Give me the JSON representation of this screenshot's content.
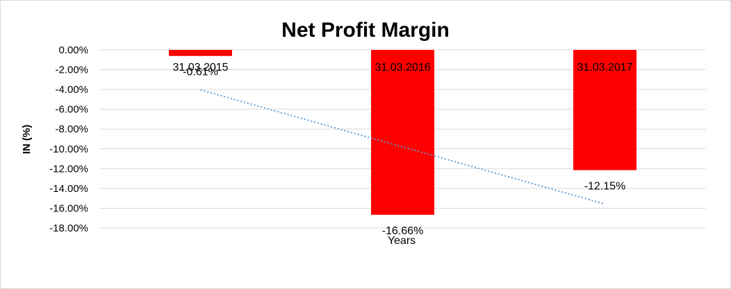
{
  "chart_data": {
    "type": "bar",
    "title": "Net Profit Margin",
    "xlabel": "Years",
    "ylabel": "IN (%)",
    "categories": [
      "31.03.2015",
      "31.03.2016",
      "31.03.2017"
    ],
    "series": [
      {
        "values": [
          -0.61,
          -16.66,
          -12.15
        ],
        "color": "#ff0000"
      }
    ],
    "data_labels": [
      "-0.61%",
      "-16.66%",
      "-12.15%"
    ],
    "ylim": [
      -18,
      0
    ],
    "yticks": [
      0,
      -2,
      -4,
      -6,
      -8,
      -10,
      -12,
      -14,
      -16,
      -18
    ],
    "ytick_labels": [
      "0.00%",
      "-2.00%",
      "-4.00%",
      "-6.00%",
      "-8.00%",
      "-10.00%",
      "-12.00%",
      "-14.00%",
      "-16.00%",
      "-18.00%"
    ],
    "trendline": {
      "type": "linear",
      "style": "dotted",
      "color": "#5b9bd5"
    },
    "grid": true,
    "legend": "none"
  }
}
